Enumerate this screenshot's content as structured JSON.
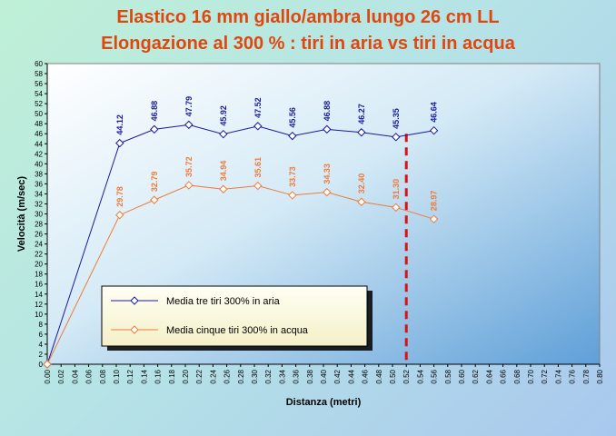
{
  "chart_data": {
    "type": "line",
    "title": "Elastico 16 mm  giallo/ambra lungo 26 cm LL",
    "subtitle": "Elongazione al 300 % : tiri in aria vs tiri in acqua",
    "xlabel": "Distanza (metri)",
    "ylabel": "Velocità (m/sec)",
    "xlim": [
      0,
      0.8
    ],
    "ylim": [
      0,
      60
    ],
    "x_ticks": [
      "0.00",
      "0.02",
      "0.04",
      "0.06",
      "0.08",
      "0.10",
      "0.12",
      "0.14",
      "0.16",
      "0.18",
      "0.20",
      "0.22",
      "0.24",
      "0.26",
      "0.28",
      "0.30",
      "0.32",
      "0.34",
      "0.36",
      "0.38",
      "0.40",
      "0.42",
      "0.44",
      "0.46",
      "0.48",
      "0.50",
      "0.52",
      "0.54",
      "0.56",
      "0.58",
      "0.60",
      "0.62",
      "0.64",
      "0.66",
      "0.68",
      "0.70",
      "0.72",
      "0.74",
      "0.76",
      "0.78",
      "0.80"
    ],
    "y_ticks": [
      "0",
      "2",
      "4",
      "6",
      "8",
      "10",
      "12",
      "14",
      "16",
      "18",
      "20",
      "22",
      "24",
      "26",
      "28",
      "30",
      "32",
      "34",
      "36",
      "38",
      "40",
      "42",
      "44",
      "46",
      "48",
      "50",
      "52",
      "54",
      "56",
      "58",
      "60"
    ],
    "grid": false,
    "legend_position": "bottom-left",
    "series": [
      {
        "name": "Media tre tiri 300% in aria",
        "color": "#1a1a9a",
        "x": [
          0.0,
          0.105,
          0.155,
          0.205,
          0.255,
          0.305,
          0.355,
          0.405,
          0.455,
          0.505,
          0.56
        ],
        "values": [
          0,
          44.12,
          46.88,
          47.79,
          45.92,
          47.52,
          45.56,
          46.88,
          46.27,
          45.35,
          46.64
        ],
        "labels": [
          null,
          "44.12",
          "46.88",
          "47.79",
          "45.92",
          "47.52",
          "45.56",
          "46.88",
          "46.27",
          "45.35",
          "46.64"
        ]
      },
      {
        "name": "Media cinque tiri 300% in acqua",
        "color": "#f07a3a",
        "x": [
          0.0,
          0.105,
          0.155,
          0.205,
          0.255,
          0.305,
          0.355,
          0.405,
          0.455,
          0.505,
          0.56
        ],
        "values": [
          0,
          29.78,
          32.79,
          35.72,
          34.94,
          35.61,
          33.73,
          34.33,
          32.4,
          31.3,
          28.97
        ],
        "labels": [
          null,
          "29.78",
          "32.79",
          "35.72",
          "34.94",
          "35.61",
          "33.73",
          "34.33",
          "32.40",
          "31.30",
          "28.97"
        ]
      }
    ],
    "reference_line": {
      "x": 0.52,
      "color": "#dd1111"
    }
  }
}
